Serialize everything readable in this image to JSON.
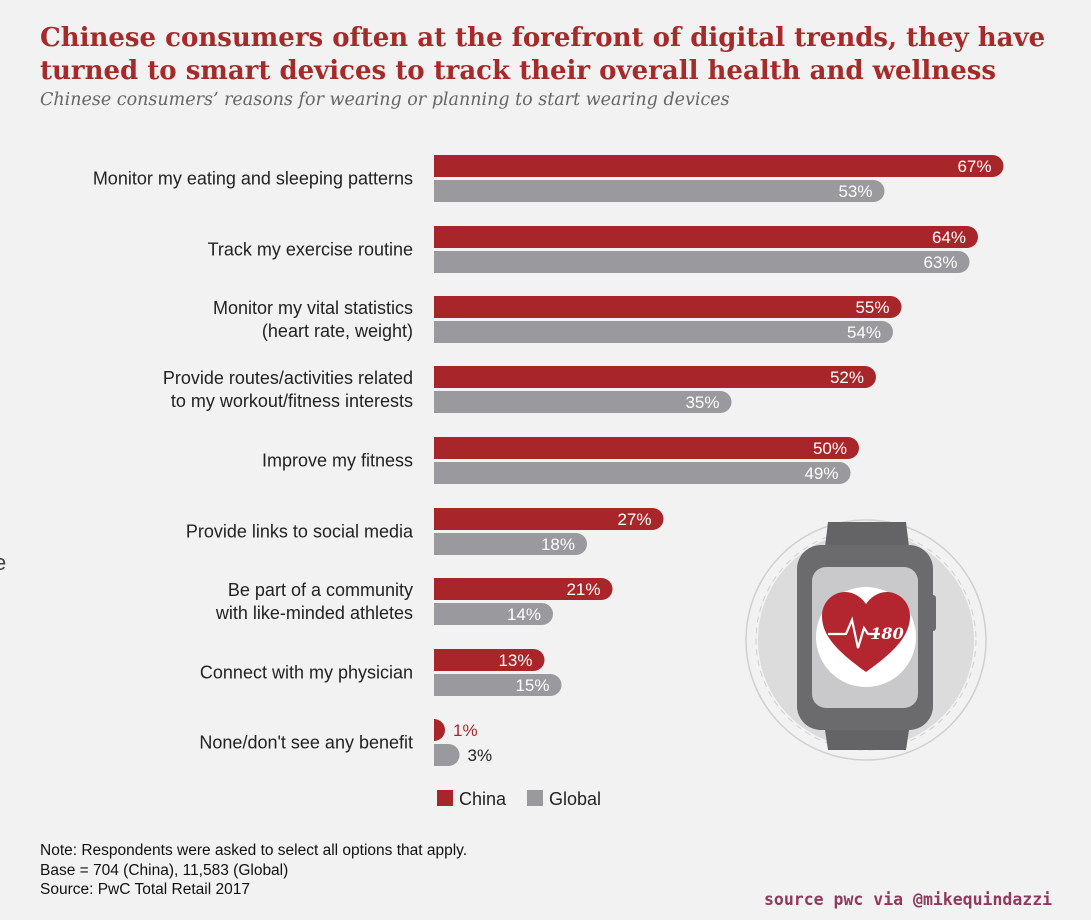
{
  "title": "Chinese consumers often at the forefront of digital trends, they have turned to smart devices to track their overall health and wellness",
  "subtitle": "Chinese consumers’ reasons for wearing or planning to start wearing devices",
  "stray_char": "e",
  "chart_data": {
    "type": "bar",
    "orientation": "horizontal",
    "categories": [
      [
        "Monitor my eating and sleeping patterns"
      ],
      [
        "Track my exercise routine"
      ],
      [
        "Monitor my vital statistics",
        "(heart rate, weight)"
      ],
      [
        "Provide routes/activities related",
        "to my workout/fitness interests"
      ],
      [
        "Improve my fitness"
      ],
      [
        "Provide links to social media"
      ],
      [
        "Be part of a community",
        "with like-minded athletes"
      ],
      [
        "Connect with my physician"
      ],
      [
        "None/don't see any benefit"
      ]
    ],
    "series": [
      {
        "name": "China",
        "color": "#a8262a",
        "values": [
          67,
          64,
          55,
          52,
          50,
          27,
          21,
          13,
          1
        ]
      },
      {
        "name": "Global",
        "color": "#9a9a9e",
        "values": [
          53,
          63,
          54,
          35,
          49,
          18,
          14,
          15,
          3
        ]
      }
    ],
    "value_suffix": "%",
    "xlim": [
      0,
      100
    ],
    "grid": false,
    "legend_position": "bottom"
  },
  "illustration": {
    "type": "smartwatch-icon",
    "heart_rate_label": "180"
  },
  "notes": [
    "Note: Respondents were asked to select all options that apply.",
    "Base = 704 (China), 11,583 (Global)",
    "Source: PwC Total Retail 2017"
  ],
  "watermark": "source pwc via @mikequindazzi"
}
